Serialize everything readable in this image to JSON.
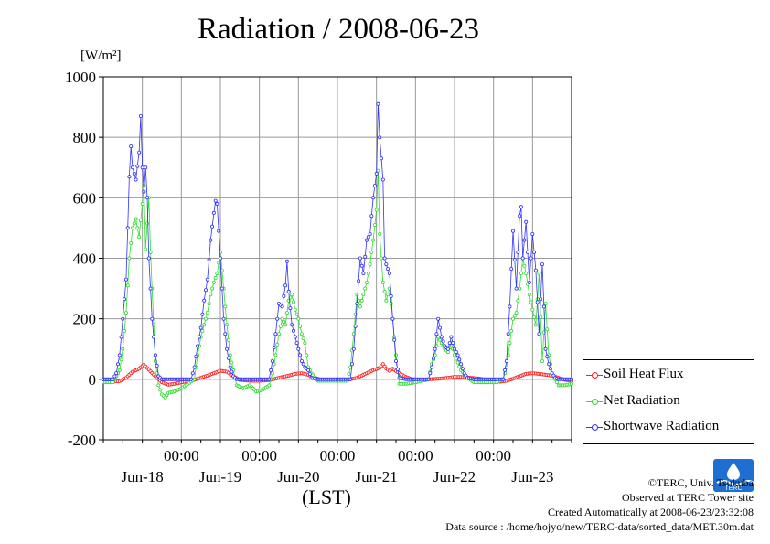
{
  "header": {
    "title": "Radiation / 2008-06-23",
    "unit_label": "[W/m²]"
  },
  "chart_data": {
    "type": "line",
    "title": "Radiation / 2008-06-23",
    "xlabel": "(LST)",
    "ylabel": "[W/m²]",
    "ylim": [
      -200,
      1000
    ],
    "yticks": [
      "-200",
      "0",
      "200",
      "400",
      "600",
      "800",
      "1000"
    ],
    "x_range_hours": [
      0,
      144
    ],
    "x_time_ticks": [
      {
        "hour": 24,
        "label": "00:00"
      },
      {
        "hour": 48,
        "label": "00:00"
      },
      {
        "hour": 72,
        "label": "00:00"
      },
      {
        "hour": 96,
        "label": "00:00"
      },
      {
        "hour": 120,
        "label": "00:00"
      }
    ],
    "x_day_labels": [
      {
        "hour": 12,
        "label": "Jun-18"
      },
      {
        "hour": 36,
        "label": "Jun-19"
      },
      {
        "hour": 60,
        "label": "Jun-20"
      },
      {
        "hour": 84,
        "label": "Jun-21"
      },
      {
        "hour": 108,
        "label": "Jun-22"
      },
      {
        "hour": 132,
        "label": "Jun-23"
      }
    ],
    "grid": true,
    "legend_position": "bottom-right",
    "series": [
      {
        "name": "Soil Heat Flux",
        "color": "#ff2020",
        "values": [
          [
            0,
            -8
          ],
          [
            3,
            -8
          ],
          [
            5,
            -6
          ],
          [
            7,
            5
          ],
          [
            9,
            25
          ],
          [
            11,
            35
          ],
          [
            12.5,
            48
          ],
          [
            14,
            32
          ],
          [
            16,
            10
          ],
          [
            18,
            -10
          ],
          [
            20,
            -18
          ],
          [
            22,
            -15
          ],
          [
            24,
            -10
          ],
          [
            27,
            -5
          ],
          [
            30,
            5
          ],
          [
            32,
            12
          ],
          [
            34,
            20
          ],
          [
            36,
            28
          ],
          [
            38,
            25
          ],
          [
            40,
            10
          ],
          [
            42,
            -2
          ],
          [
            45,
            -5
          ],
          [
            48,
            -5
          ],
          [
            51,
            -3
          ],
          [
            54,
            5
          ],
          [
            57,
            12
          ],
          [
            59,
            18
          ],
          [
            61,
            20
          ],
          [
            63,
            15
          ],
          [
            65,
            5
          ],
          [
            67,
            -2
          ],
          [
            70,
            -3
          ],
          [
            72,
            -3
          ],
          [
            75,
            -2
          ],
          [
            78,
            5
          ],
          [
            81,
            20
          ],
          [
            83,
            30
          ],
          [
            85,
            38
          ],
          [
            86,
            50
          ],
          [
            87,
            35
          ],
          [
            88,
            28
          ],
          [
            89,
            35
          ],
          [
            91,
            20
          ],
          [
            93,
            8
          ],
          [
            95,
            0
          ],
          [
            98,
            -2
          ],
          [
            100,
            0
          ],
          [
            103,
            2
          ],
          [
            106,
            5
          ],
          [
            108,
            8
          ],
          [
            110,
            8
          ],
          [
            113,
            5
          ],
          [
            116,
            2
          ],
          [
            119,
            -5
          ],
          [
            122,
            -8
          ],
          [
            124,
            -5
          ],
          [
            126,
            2
          ],
          [
            128,
            10
          ],
          [
            130,
            18
          ],
          [
            132,
            20
          ],
          [
            134,
            18
          ],
          [
            136,
            15
          ],
          [
            138,
            12
          ],
          [
            140,
            5
          ],
          [
            142,
            -2
          ],
          [
            144,
            -5
          ]
        ]
      },
      {
        "name": "Net Radiation",
        "color": "#30dd30",
        "values": [
          [
            0,
            -10
          ],
          [
            3,
            -10
          ],
          [
            5,
            30
          ],
          [
            6,
            100
          ],
          [
            7,
            220
          ],
          [
            8,
            400
          ],
          [
            9,
            500
          ],
          [
            10,
            530
          ],
          [
            11,
            470
          ],
          [
            12,
            580
          ],
          [
            12.5,
            640
          ],
          [
            13,
            430
          ],
          [
            14,
            600
          ],
          [
            14.5,
            420
          ],
          [
            15,
            300
          ],
          [
            16,
            60
          ],
          [
            17,
            -20
          ],
          [
            18,
            -50
          ],
          [
            19,
            -60
          ],
          [
            20,
            -45
          ],
          [
            22,
            -40
          ],
          [
            24,
            -30
          ],
          [
            26,
            -15
          ],
          [
            28,
            0
          ],
          [
            29,
            80
          ],
          [
            30,
            140
          ],
          [
            31,
            180
          ],
          [
            32,
            220
          ],
          [
            33,
            280
          ],
          [
            34,
            320
          ],
          [
            35,
            350
          ],
          [
            36,
            420
          ],
          [
            37,
            300
          ],
          [
            38,
            180
          ],
          [
            39,
            80
          ],
          [
            40,
            30
          ],
          [
            41,
            -20
          ],
          [
            43,
            -30
          ],
          [
            45,
            -20
          ],
          [
            47,
            -40
          ],
          [
            49,
            -35
          ],
          [
            51,
            -20
          ],
          [
            52,
            20
          ],
          [
            53,
            80
          ],
          [
            54,
            150
          ],
          [
            55,
            200
          ],
          [
            56,
            180
          ],
          [
            57,
            260
          ],
          [
            58,
            280
          ],
          [
            59,
            230
          ],
          [
            60,
            200
          ],
          [
            61,
            150
          ],
          [
            62,
            120
          ],
          [
            63,
            40
          ],
          [
            64,
            20
          ],
          [
            66,
            -5
          ],
          [
            68,
            -5
          ],
          [
            72,
            -5
          ],
          [
            75,
            -5
          ],
          [
            76,
            40
          ],
          [
            77,
            150
          ],
          [
            78,
            280
          ],
          [
            79,
            240
          ],
          [
            80,
            280
          ],
          [
            81,
            320
          ],
          [
            82,
            380
          ],
          [
            83,
            460
          ],
          [
            84,
            560
          ],
          [
            84.5,
            690
          ],
          [
            85,
            480
          ],
          [
            86,
            320
          ],
          [
            87,
            260
          ],
          [
            88,
            300
          ],
          [
            89,
            200
          ],
          [
            90,
            80
          ],
          [
            91,
            -15
          ],
          [
            93,
            -15
          ],
          [
            96,
            -10
          ],
          [
            98,
            -5
          ],
          [
            100,
            0
          ],
          [
            101,
            50
          ],
          [
            102,
            80
          ],
          [
            103,
            140
          ],
          [
            104,
            120
          ],
          [
            105,
            100
          ],
          [
            106,
            90
          ],
          [
            107,
            120
          ],
          [
            108,
            80
          ],
          [
            110,
            30
          ],
          [
            112,
            5
          ],
          [
            114,
            -10
          ],
          [
            118,
            -10
          ],
          [
            121,
            -10
          ],
          [
            123,
            0
          ],
          [
            124,
            40
          ],
          [
            125,
            120
          ],
          [
            126,
            200
          ],
          [
            127,
            220
          ],
          [
            128,
            300
          ],
          [
            129,
            400
          ],
          [
            130,
            350
          ],
          [
            131,
            280
          ],
          [
            132,
            230
          ],
          [
            133,
            180
          ],
          [
            134,
            350
          ],
          [
            135,
            60
          ],
          [
            136,
            250
          ],
          [
            137,
            80
          ],
          [
            138,
            20
          ],
          [
            140,
            -20
          ],
          [
            142,
            -20
          ],
          [
            144,
            -15
          ]
        ]
      },
      {
        "name": "Shortwave Radiation",
        "color": "#3030ff",
        "values": [
          [
            0,
            0
          ],
          [
            3,
            0
          ],
          [
            4,
            20
          ],
          [
            5,
            80
          ],
          [
            6,
            200
          ],
          [
            7,
            330
          ],
          [
            8,
            670
          ],
          [
            8.5,
            770
          ],
          [
            9,
            700
          ],
          [
            10,
            660
          ],
          [
            11,
            750
          ],
          [
            11.5,
            870
          ],
          [
            12,
            700
          ],
          [
            12.5,
            620
          ],
          [
            13,
            700
          ],
          [
            13.5,
            600
          ],
          [
            14,
            400
          ],
          [
            15,
            200
          ],
          [
            16,
            80
          ],
          [
            17,
            10
          ],
          [
            18,
            0
          ],
          [
            24,
            0
          ],
          [
            27,
            0
          ],
          [
            28,
            40
          ],
          [
            29,
            110
          ],
          [
            30,
            170
          ],
          [
            31,
            260
          ],
          [
            32,
            330
          ],
          [
            33,
            460
          ],
          [
            34,
            550
          ],
          [
            34.5,
            590
          ],
          [
            35,
            580
          ],
          [
            36,
            400
          ],
          [
            37,
            200
          ],
          [
            38,
            100
          ],
          [
            39,
            40
          ],
          [
            40,
            10
          ],
          [
            41,
            0
          ],
          [
            48,
            0
          ],
          [
            51,
            0
          ],
          [
            52,
            60
          ],
          [
            53,
            150
          ],
          [
            54,
            250
          ],
          [
            55,
            240
          ],
          [
            56,
            310
          ],
          [
            56.5,
            390
          ],
          [
            57,
            290
          ],
          [
            58,
            180
          ],
          [
            59,
            140
          ],
          [
            60,
            100
          ],
          [
            61,
            60
          ],
          [
            62,
            40
          ],
          [
            63,
            30
          ],
          [
            64,
            5
          ],
          [
            66,
            0
          ],
          [
            72,
            0
          ],
          [
            76,
            0
          ],
          [
            77,
            100
          ],
          [
            78,
            250
          ],
          [
            79,
            400
          ],
          [
            80,
            350
          ],
          [
            81,
            460
          ],
          [
            82,
            480
          ],
          [
            83,
            600
          ],
          [
            84,
            680
          ],
          [
            84.5,
            910
          ],
          [
            85,
            800
          ],
          [
            86,
            660
          ],
          [
            86.5,
            400
          ],
          [
            87,
            380
          ],
          [
            88,
            350
          ],
          [
            89,
            200
          ],
          [
            90,
            60
          ],
          [
            91,
            5
          ],
          [
            93,
            0
          ],
          [
            100,
            0
          ],
          [
            101,
            40
          ],
          [
            102,
            100
          ],
          [
            103,
            200
          ],
          [
            104,
            140
          ],
          [
            105,
            110
          ],
          [
            106,
            100
          ],
          [
            107,
            140
          ],
          [
            108,
            100
          ],
          [
            109,
            80
          ],
          [
            110,
            50
          ],
          [
            111,
            20
          ],
          [
            112,
            5
          ],
          [
            114,
            0
          ],
          [
            123,
            0
          ],
          [
            124,
            60
          ],
          [
            125,
            240
          ],
          [
            126,
            490
          ],
          [
            127,
            300
          ],
          [
            128,
            540
          ],
          [
            128.5,
            570
          ],
          [
            129,
            400
          ],
          [
            130,
            520
          ],
          [
            131,
            320
          ],
          [
            132,
            480
          ],
          [
            133,
            360
          ],
          [
            134,
            150
          ],
          [
            135,
            380
          ],
          [
            136,
            100
          ],
          [
            137,
            50
          ],
          [
            138,
            20
          ],
          [
            139,
            5
          ],
          [
            140,
            0
          ],
          [
            144,
            0
          ]
        ]
      }
    ]
  },
  "legend": {
    "items": [
      {
        "label": "Soil Heat Flux",
        "color": "#ff2020"
      },
      {
        "label": "Net Radiation",
        "color": "#30dd30"
      },
      {
        "label": "Shortwave Radiation",
        "color": "#3030ff"
      }
    ]
  },
  "credits": {
    "line1": "©TERC, Univ. Tsukuba",
    "line2": "Observed at TERC Tower site",
    "line3": "Created Automatically at 2008-06-23/23:32:08",
    "line4": "Data source : /home/hojyo/new/TERC-data/sorted_data/MET.30m.dat"
  },
  "logo": {
    "text": "TERC"
  }
}
